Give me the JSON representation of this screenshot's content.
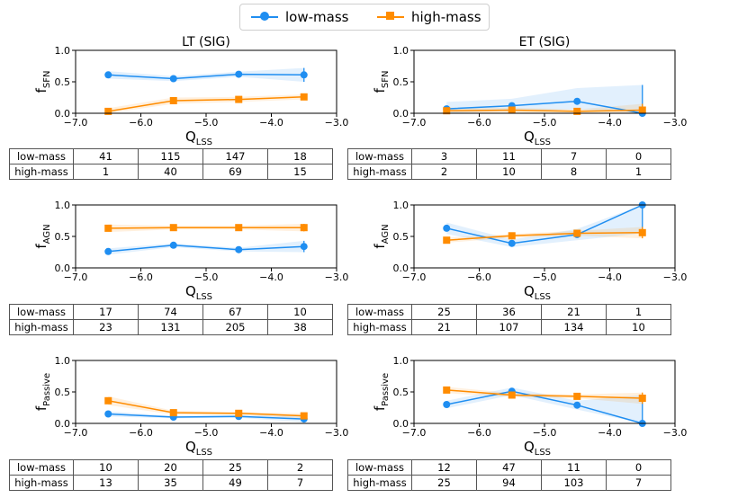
{
  "legend": [
    {
      "name": "low-mass",
      "color": "#1f8ef1",
      "marker": "circle"
    },
    {
      "name": "high-mass",
      "color": "#ff8c00",
      "marker": "square"
    }
  ],
  "columns": [
    {
      "title": "LT (SIG)"
    },
    {
      "title": "ET (SIG)"
    }
  ],
  "chart_data": [
    {
      "type": "line",
      "id": "lt-sfn",
      "title": "LT (SIG)",
      "ylabel_base": "f",
      "ylabel_sub": "SFN",
      "xlabel_base": "Q",
      "xlabel_sub": "LSS",
      "xlim": [
        -7.0,
        -3.0
      ],
      "ylim": [
        0.0,
        1.0
      ],
      "xticks": [
        "−7.0",
        "−6.0",
        "−5.0",
        "−4.0",
        "−3.0"
      ],
      "xtick_values": [
        -7,
        -6,
        -5,
        -4,
        -3
      ],
      "yticks": [
        "0.0",
        "0.5",
        "1.0"
      ],
      "ytick_values": [
        0,
        0.5,
        1.0
      ],
      "x": [
        -6.5,
        -5.5,
        -4.5,
        -3.5
      ],
      "series": [
        {
          "name": "low-mass",
          "values": [
            0.61,
            0.55,
            0.62,
            0.61
          ],
          "band_low": [
            0.55,
            0.51,
            0.58,
            0.5
          ],
          "band_high": [
            0.67,
            0.59,
            0.66,
            0.72
          ]
        },
        {
          "name": "high-mass",
          "values": [
            0.03,
            0.2,
            0.22,
            0.26
          ],
          "band_low": [
            0.0,
            0.15,
            0.18,
            0.22
          ],
          "band_high": [
            0.08,
            0.25,
            0.26,
            0.3
          ]
        }
      ],
      "table": [
        [
          "low-mass",
          "41",
          "115",
          "147",
          "18"
        ],
        [
          "high-mass",
          "1",
          "40",
          "69",
          "15"
        ]
      ]
    },
    {
      "type": "line",
      "id": "et-sfn",
      "title": "ET (SIG)",
      "ylabel_base": "f",
      "ylabel_sub": "SFN",
      "xlabel_base": "Q",
      "xlabel_sub": "LSS",
      "xlim": [
        -7.0,
        -3.0
      ],
      "ylim": [
        0.0,
        1.0
      ],
      "xticks": [
        "−7.0",
        "−6.0",
        "−5.0",
        "−4.0",
        "−3.0"
      ],
      "xtick_values": [
        -7,
        -6,
        -5,
        -4,
        -3
      ],
      "yticks": [
        "0.0",
        "0.5",
        "1.0"
      ],
      "ytick_values": [
        0,
        0.5,
        1.0
      ],
      "x": [
        -6.5,
        -5.5,
        -4.5,
        -3.5
      ],
      "series": [
        {
          "name": "low-mass",
          "values": [
            0.07,
            0.12,
            0.19,
            0.0
          ],
          "band_low": [
            0.0,
            0.04,
            0.06,
            0.0
          ],
          "band_high": [
            0.18,
            0.23,
            0.4,
            0.45
          ]
        },
        {
          "name": "high-mass",
          "values": [
            0.04,
            0.05,
            0.03,
            0.05
          ],
          "band_low": [
            0.0,
            0.01,
            0.0,
            0.0
          ],
          "band_high": [
            0.09,
            0.09,
            0.06,
            0.15
          ]
        }
      ],
      "table": [
        [
          "low-mass",
          "3",
          "11",
          "7",
          "0"
        ],
        [
          "high-mass",
          "2",
          "10",
          "8",
          "1"
        ]
      ]
    },
    {
      "type": "line",
      "id": "lt-agn",
      "title": "",
      "ylabel_base": "f",
      "ylabel_sub": "AGN",
      "xlabel_base": "Q",
      "xlabel_sub": "LSS",
      "xlim": [
        -7.0,
        -3.0
      ],
      "ylim": [
        0.0,
        1.0
      ],
      "xticks": [
        "−7.0",
        "−6.0",
        "−5.0",
        "−4.0",
        "−3.0"
      ],
      "xtick_values": [
        -7,
        -6,
        -5,
        -4,
        -3
      ],
      "yticks": [
        "0.0",
        "0.5",
        "1.0"
      ],
      "ytick_values": [
        0,
        0.5,
        1.0
      ],
      "x": [
        -6.5,
        -5.5,
        -4.5,
        -3.5
      ],
      "series": [
        {
          "name": "low-mass",
          "values": [
            0.26,
            0.36,
            0.29,
            0.34
          ],
          "band_low": [
            0.21,
            0.33,
            0.26,
            0.25
          ],
          "band_high": [
            0.31,
            0.39,
            0.32,
            0.43
          ]
        },
        {
          "name": "high-mass",
          "values": [
            0.63,
            0.64,
            0.64,
            0.64
          ],
          "band_low": [
            0.57,
            0.61,
            0.61,
            0.58
          ],
          "band_high": [
            0.69,
            0.67,
            0.67,
            0.7
          ]
        }
      ],
      "table": [
        [
          "low-mass",
          "17",
          "74",
          "67",
          "10"
        ],
        [
          "high-mass",
          "23",
          "131",
          "205",
          "38"
        ]
      ]
    },
    {
      "type": "line",
      "id": "et-agn",
      "title": "",
      "ylabel_base": "f",
      "ylabel_sub": "AGN",
      "xlabel_base": "Q",
      "xlabel_sub": "LSS",
      "xlim": [
        -7.0,
        -3.0
      ],
      "ylim": [
        0.0,
        1.0
      ],
      "xticks": [
        "−7.0",
        "−6.0",
        "−5.0",
        "−4.0",
        "−3.0"
      ],
      "xtick_values": [
        -7,
        -6,
        -5,
        -4,
        -3
      ],
      "yticks": [
        "0.0",
        "0.5",
        "1.0"
      ],
      "ytick_values": [
        0,
        0.5,
        1.0
      ],
      "x": [
        -6.5,
        -5.5,
        -4.5,
        -3.5
      ],
      "series": [
        {
          "name": "low-mass",
          "values": [
            0.63,
            0.39,
            0.53,
            1.0
          ],
          "band_low": [
            0.54,
            0.33,
            0.44,
            0.55
          ],
          "band_high": [
            0.72,
            0.45,
            0.62,
            1.0
          ]
        },
        {
          "name": "high-mass",
          "values": [
            0.44,
            0.51,
            0.55,
            0.56
          ],
          "band_low": [
            0.4,
            0.48,
            0.51,
            0.47
          ],
          "band_high": [
            0.48,
            0.54,
            0.59,
            0.65
          ]
        }
      ],
      "table": [
        [
          "low-mass",
          "25",
          "36",
          "21",
          "1"
        ],
        [
          "high-mass",
          "21",
          "107",
          "134",
          "10"
        ]
      ]
    },
    {
      "type": "line",
      "id": "lt-passive",
      "title": "",
      "ylabel_base": "f",
      "ylabel_sub": "Passive",
      "xlabel_base": "Q",
      "xlabel_sub": "LSS",
      "xlim": [
        -7.0,
        -3.0
      ],
      "ylim": [
        0.0,
        1.0
      ],
      "xticks": [
        "−7.0",
        "−6.0",
        "−5.0",
        "−4.0",
        "−3.0"
      ],
      "xtick_values": [
        -7,
        -6,
        -5,
        -4,
        -3
      ],
      "yticks": [
        "0.0",
        "0.5",
        "1.0"
      ],
      "ytick_values": [
        0,
        0.5,
        1.0
      ],
      "x": [
        -6.5,
        -5.5,
        -4.5,
        -3.5
      ],
      "series": [
        {
          "name": "low-mass",
          "values": [
            0.15,
            0.1,
            0.11,
            0.07
          ],
          "band_low": [
            0.11,
            0.08,
            0.09,
            0.02
          ],
          "band_high": [
            0.19,
            0.12,
            0.13,
            0.12
          ]
        },
        {
          "name": "high-mass",
          "values": [
            0.36,
            0.17,
            0.16,
            0.12
          ],
          "band_low": [
            0.29,
            0.14,
            0.14,
            0.08
          ],
          "band_high": [
            0.43,
            0.2,
            0.18,
            0.16
          ]
        }
      ],
      "table": [
        [
          "low-mass",
          "10",
          "20",
          "25",
          "2"
        ],
        [
          "high-mass",
          "13",
          "35",
          "49",
          "7"
        ]
      ]
    },
    {
      "type": "line",
      "id": "et-passive",
      "title": "",
      "ylabel_base": "f",
      "ylabel_sub": "Passive",
      "xlabel_base": "Q",
      "xlabel_sub": "LSS",
      "xlim": [
        -7.0,
        -3.0
      ],
      "ylim": [
        0.0,
        1.0
      ],
      "xticks": [
        "−7.0",
        "−6.0",
        "−5.0",
        "−4.0",
        "−3.0"
      ],
      "xtick_values": [
        -7,
        -6,
        -5,
        -4,
        -3
      ],
      "yticks": [
        "0.0",
        "0.5",
        "1.0"
      ],
      "ytick_values": [
        0,
        0.5,
        1.0
      ],
      "x": [
        -6.5,
        -5.5,
        -4.5,
        -3.5
      ],
      "series": [
        {
          "name": "low-mass",
          "values": [
            0.3,
            0.51,
            0.29,
            0.0
          ],
          "band_low": [
            0.24,
            0.45,
            0.22,
            0.0
          ],
          "band_high": [
            0.36,
            0.57,
            0.36,
            0.45
          ]
        },
        {
          "name": "high-mass",
          "values": [
            0.53,
            0.45,
            0.43,
            0.4
          ],
          "band_low": [
            0.48,
            0.42,
            0.4,
            0.31
          ],
          "band_high": [
            0.58,
            0.48,
            0.46,
            0.49
          ]
        }
      ],
      "table": [
        [
          "low-mass",
          "12",
          "47",
          "11",
          "0"
        ],
        [
          "high-mass",
          "25",
          "94",
          "103",
          "7"
        ]
      ]
    }
  ]
}
